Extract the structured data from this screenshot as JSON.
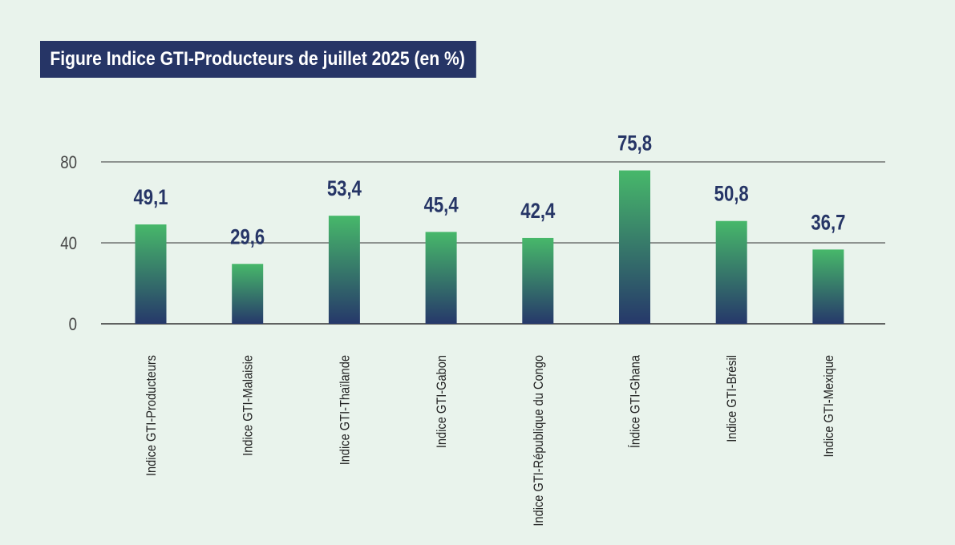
{
  "chart_data": {
    "type": "bar",
    "title": "Figure Indice GTI-Producteurs  de juillet 2025 (en %)",
    "categories": [
      "Indice GTI-Producteurs",
      "Indice GTI-Malaisie",
      "Indice GTI-Thaïlande",
      "Indice GTI-Gabon",
      "Indice GTI-République du Congo",
      "Índice GTI-Ghana",
      "Indice GTI-Brésil",
      "Indice GTI-Mexique"
    ],
    "values": [
      49.1,
      29.6,
      53.4,
      45.4,
      42.4,
      75.8,
      50.8,
      36.7
    ],
    "data_labels": [
      "49,1",
      "29,6",
      "53,4",
      "45,4",
      "42,4",
      "75,8",
      "50,8",
      "36,7"
    ],
    "yticks": [
      0,
      40,
      80
    ],
    "ytick_labels": [
      "0",
      "40",
      "80"
    ],
    "ylim": [
      0,
      80
    ],
    "xlabel": "",
    "ylabel": "",
    "grid": true,
    "legend": "none",
    "colors": {
      "bar_top": "#47b86a",
      "bar_bottom": "#26386a",
      "label": "#263566",
      "title_bg": "#263566",
      "grid": "#333333",
      "background": "#e9f3ec"
    }
  }
}
